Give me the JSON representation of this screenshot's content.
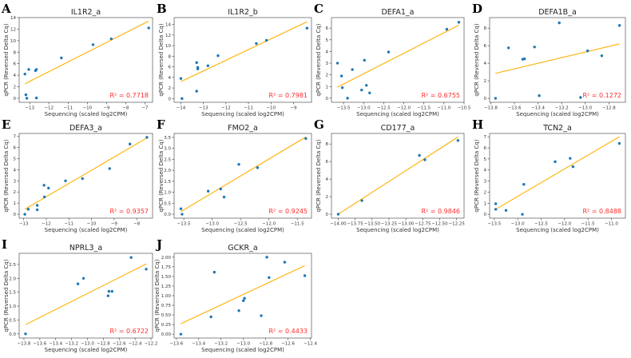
{
  "colors": {
    "points": "#1f77b4",
    "fit_line": "#ffb000",
    "r2_text": "#ff2b2b",
    "frame": "#555555"
  },
  "chart_data": [
    {
      "letter": "A",
      "type": "scatter",
      "title": "IL1R2_a",
      "xlabel": "Sequencing (scaled log2CPM)",
      "ylabel": "qPCR (Reversed Delta Cq)",
      "r2_label": "R² = 0.7718",
      "xlim": [
        -13.55,
        -6.6
      ],
      "ylim": [
        -0.7,
        14
      ],
      "xticks": [
        -13,
        -12,
        -11,
        -10,
        -9,
        -8,
        -7
      ],
      "yticks": [
        0,
        2,
        4,
        6,
        8,
        10,
        12,
        14
      ],
      "points": [
        [
          -13.25,
          4.2
        ],
        [
          -13.2,
          0.6
        ],
        [
          -13.15,
          0
        ],
        [
          -13.05,
          5.0
        ],
        [
          -12.7,
          4.8
        ],
        [
          -12.65,
          5.0
        ],
        [
          -12.65,
          0.05
        ],
        [
          -11.35,
          7.0
        ],
        [
          -9.7,
          9.3
        ],
        [
          -8.75,
          10.3
        ],
        [
          -6.8,
          12.2
        ]
      ],
      "fit": [
        [
          -13.25,
          2.5
        ],
        [
          -6.8,
          13.4
        ]
      ]
    },
    {
      "letter": "B",
      "type": "scatter",
      "title": "IL1R2_b",
      "xlabel": "Sequencing (scaled log2CPM)",
      "ylabel": "qPCR (Reversed Delta Cq)",
      "r2_label": "R² = 0.7981",
      "xlim": [
        -14.3,
        -8.2
      ],
      "ylim": [
        -0.7,
        15.3
      ],
      "xticks": [
        -14,
        -13,
        -12,
        -11,
        -10,
        -9
      ],
      "yticks": [
        0,
        2,
        4,
        6,
        8,
        10,
        12,
        14
      ],
      "points": [
        [
          -14,
          3.8
        ],
        [
          -13.95,
          0
        ],
        [
          -13.3,
          6.8
        ],
        [
          -13.3,
          1.4
        ],
        [
          -13.25,
          5.9
        ],
        [
          -13.25,
          5.6
        ],
        [
          -12.8,
          6.2
        ],
        [
          -12.35,
          8.1
        ],
        [
          -10.65,
          10.4
        ],
        [
          -10.2,
          11.0
        ],
        [
          -8.4,
          13.3
        ]
      ],
      "fit": [
        [
          -14,
          3.2
        ],
        [
          -8.4,
          14.5
        ]
      ]
    },
    {
      "letter": "C",
      "type": "scatter",
      "title": "DEFA1_a",
      "xlabel": "Sequencing (scaled log2CPM)",
      "ylabel": "qPCR (Reversed Delta Cq)",
      "r2_label": "R² = 0.6755",
      "xlim": [
        -13.8,
        -10.5
      ],
      "ylim": [
        -0.35,
        6.9
      ],
      "xticks": [
        -13.5,
        -13.0,
        -12.5,
        -12.0,
        -11.5,
        -11.0,
        -10.5
      ],
      "yticks": [
        0,
        1,
        2,
        3,
        4,
        5,
        6
      ],
      "points": [
        [
          -13.65,
          3.0
        ],
        [
          -13.55,
          1.9
        ],
        [
          -13.53,
          0.9
        ],
        [
          -13.4,
          0
        ],
        [
          -13.28,
          2.45
        ],
        [
          -13.05,
          0.7
        ],
        [
          -12.98,
          3.25
        ],
        [
          -12.93,
          1.1
        ],
        [
          -12.85,
          0.45
        ],
        [
          -12.38,
          3.95
        ],
        [
          -10.93,
          5.9
        ],
        [
          -10.63,
          6.5
        ]
      ],
      "fit": [
        [
          -13.65,
          0.95
        ],
        [
          -10.63,
          6.25
        ]
      ]
    },
    {
      "letter": "D",
      "type": "scatter",
      "title": "DEFA1B_a",
      "xlabel": "Sequencing (scaled log2CPM)",
      "ylabel": "qPCR (Reversed Delta Cq)",
      "r2_label": "R² = 0.1272",
      "xlim": [
        -13.81,
        -12.66
      ],
      "ylim": [
        -0.45,
        9.2
      ],
      "xticks": [
        -13.8,
        -13.6,
        -13.4,
        -13.2,
        -13.0,
        -12.8
      ],
      "yticks": [
        0,
        2,
        4,
        6,
        8
      ],
      "points": [
        [
          -13.76,
          0
        ],
        [
          -13.65,
          5.75
        ],
        [
          -13.53,
          4.45
        ],
        [
          -13.515,
          4.5
        ],
        [
          -13.43,
          5.85
        ],
        [
          -13.39,
          0.3
        ],
        [
          -13.22,
          8.6
        ],
        [
          -13.04,
          0.1
        ],
        [
          -12.98,
          5.4
        ],
        [
          -12.86,
          4.85
        ],
        [
          -12.71,
          8.3
        ]
      ],
      "fit": [
        [
          -13.76,
          2.85
        ],
        [
          -12.71,
          6.2
        ]
      ]
    },
    {
      "letter": "E",
      "type": "scatter",
      "title": "DEFA3_a",
      "xlabel": "Sequencing (scaled log2CPM)",
      "ylabel": "qPCR (Reversed Delta Cq)",
      "r2_label": "R² = 0.9357",
      "xlim": [
        -13.2,
        -7.3
      ],
      "ylim": [
        -0.35,
        7.25
      ],
      "xticks": [
        -13,
        -12,
        -11,
        -10,
        -9,
        -8
      ],
      "yticks": [
        0,
        1,
        2,
        3,
        4,
        5,
        6,
        7
      ],
      "points": [
        [
          -12.95,
          0
        ],
        [
          -12.8,
          0.45
        ],
        [
          -12.4,
          0.8
        ],
        [
          -12.4,
          0.4
        ],
        [
          -12.1,
          2.6
        ],
        [
          -12.08,
          1.55
        ],
        [
          -11.9,
          2.35
        ],
        [
          -11.15,
          3.0
        ],
        [
          -10.4,
          3.2
        ],
        [
          -9.2,
          4.1
        ],
        [
          -8.3,
          6.3
        ],
        [
          -7.55,
          6.9
        ]
      ],
      "fit": [
        [
          -12.95,
          0.45
        ],
        [
          -7.55,
          6.85
        ]
      ]
    },
    {
      "letter": "F",
      "type": "scatter",
      "title": "FMO2_a",
      "xlabel": "Sequencing (scaled log2CPM)",
      "ylabel": "qPCR (Reversed Delta Cq)",
      "r2_label": "R² = 0.9245",
      "xlim": [
        -13.67,
        -11.25
      ],
      "ylim": [
        -0.18,
        3.68
      ],
      "xticks": [
        -13.5,
        -13.0,
        -12.5,
        -12.0,
        -11.5
      ],
      "yticks": [
        0.0,
        0.5,
        1.0,
        1.5,
        2.0,
        2.5,
        3.0,
        3.5
      ],
      "points": [
        [
          -13.55,
          0.25
        ],
        [
          -13.53,
          0
        ],
        [
          -13.07,
          1.05
        ],
        [
          -12.85,
          1.15
        ],
        [
          -12.79,
          0.78
        ],
        [
          -12.53,
          2.27
        ],
        [
          -12.2,
          2.12
        ],
        [
          -11.35,
          3.45
        ]
      ],
      "fit": [
        [
          -13.55,
          0.12
        ],
        [
          -11.35,
          3.52
        ]
      ]
    },
    {
      "letter": "G",
      "type": "scatter",
      "title": "CD177_a",
      "xlabel": "Sequencing (scaled log2CPM)",
      "ylabel": "qPCR (Reversed Delta Cq)",
      "r2_label": "R² = 0.9846",
      "xlim": [
        -14.1,
        -12.14
      ],
      "ylim": [
        -0.45,
        9.2
      ],
      "xticks": [
        -14.0,
        -13.75,
        -13.5,
        -13.25,
        -13.0,
        -12.75,
        -12.5,
        -12.25
      ],
      "yticks": [
        0,
        2,
        4,
        6,
        8
      ],
      "points": [
        [
          -14,
          0
        ],
        [
          -13.65,
          1.55
        ],
        [
          -12.8,
          6.7
        ],
        [
          -12.72,
          6.2
        ],
        [
          -12.23,
          8.4
        ]
      ],
      "fit": [
        [
          -14,
          0
        ],
        [
          -12.23,
          8.8
        ]
      ]
    },
    {
      "letter": "H",
      "type": "scatter",
      "title": "TCN2_a",
      "xlabel": "Sequencing (scaled log2CPM)",
      "ylabel": "qPCR (Reversed Delta Cq)",
      "r2_label": "R² = 0.8488",
      "xlim": [
        -13.6,
        -10.7
      ],
      "ylim": [
        -0.35,
        7.3
      ],
      "xticks": [
        -13.5,
        -13.0,
        -12.5,
        -12.0,
        -11.5,
        -11.0
      ],
      "yticks": [
        0,
        1,
        2,
        3,
        4,
        5,
        6,
        7
      ],
      "points": [
        [
          -13.47,
          0.95
        ],
        [
          -13.47,
          0.45
        ],
        [
          -13.25,
          0.35
        ],
        [
          -12.9,
          0
        ],
        [
          -12.87,
          2.7
        ],
        [
          -12.2,
          4.75
        ],
        [
          -11.88,
          5.05
        ],
        [
          -11.82,
          4.3
        ],
        [
          -10.83,
          6.4
        ]
      ],
      "fit": [
        [
          -13.47,
          0.45
        ],
        [
          -10.83,
          7.0
        ]
      ]
    },
    {
      "letter": "I",
      "type": "scatter",
      "title": "NPRL3_a",
      "xlabel": "Sequencing (scaled log2CPM)",
      "ylabel": "qPCR (Reversed Delta Cq)",
      "r2_label": "R² = 0.6722",
      "xlim": [
        -13.86,
        -12.18
      ],
      "ylim": [
        -0.15,
        2.9
      ],
      "xticks": [
        -13.8,
        -13.6,
        -13.4,
        -13.2,
        -13.0,
        -12.8,
        -12.6,
        -12.4,
        -12.2
      ],
      "yticks": [
        0.0,
        0.5,
        1.0,
        1.5,
        2.0,
        2.5
      ],
      "points": [
        [
          -13.78,
          0
        ],
        [
          -13.12,
          1.8
        ],
        [
          -13.05,
          2.0
        ],
        [
          -12.74,
          1.37
        ],
        [
          -12.73,
          1.53
        ],
        [
          -12.69,
          1.53
        ],
        [
          -12.45,
          2.75
        ],
        [
          -12.26,
          2.33
        ]
      ],
      "fit": [
        [
          -13.78,
          0.33
        ],
        [
          -12.26,
          2.52
        ]
      ]
    },
    {
      "letter": "J",
      "type": "scatter",
      "title": "GCKR_a",
      "xlabel": "Sequencing (scaled log2CPM)",
      "ylabel": "qPCR (Reversed Delta Cq)",
      "r2_label": "R² = 0.4433",
      "xlim": [
        -13.62,
        -12.39
      ],
      "ylim": [
        -0.1,
        2.1
      ],
      "xticks": [
        -13.6,
        -13.4,
        -13.2,
        -13.0,
        -12.8,
        -12.6,
        -12.4
      ],
      "yticks": [
        0.0,
        0.25,
        0.5,
        0.75,
        1.0,
        1.25,
        1.5,
        1.75,
        2.0
      ],
      "points": [
        [
          -13.56,
          0
        ],
        [
          -13.29,
          0.45
        ],
        [
          -13.26,
          1.61
        ],
        [
          -13.04,
          0.61
        ],
        [
          -13.0,
          0.87
        ],
        [
          -12.99,
          0.93
        ],
        [
          -12.84,
          0.48
        ],
        [
          -12.79,
          2.0
        ],
        [
          -12.77,
          1.47
        ],
        [
          -12.63,
          1.87
        ],
        [
          -12.45,
          1.52
        ]
      ],
      "fit": [
        [
          -13.56,
          0.27
        ],
        [
          -12.45,
          1.78
        ]
      ]
    }
  ]
}
